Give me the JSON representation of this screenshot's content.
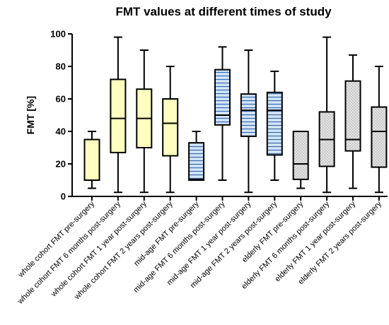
{
  "chart_data": {
    "type": "boxplot",
    "title": "FMT values at different times of study",
    "ylabel": "FMT [%]",
    "xlabel": "",
    "ylim": [
      0,
      100
    ],
    "yticks": [
      0,
      20,
      40,
      60,
      80,
      100
    ],
    "grid": false,
    "categories": [
      "whole cohort FMT pre-surgery",
      "whole cohort FMT 6 months post-surgery",
      "whole cohort FMT 1 year post-surgery",
      "whole cohort FMT 2 years post-surgery",
      "mid-age FMT pre-surgery",
      "mid-age FMT 6 months post-surgery",
      "mid-age FMT 1 year post-surgery",
      "mid-age FMT 2 years post-surgery",
      "elderly FMT pre-surgery",
      "elderly FMT 6 months post-surgery",
      "elderly FMT 1 year post-surgery",
      "elderly FMT 2 years post-surgery"
    ],
    "boxes": [
      {
        "min": 5,
        "q1": 10,
        "median": 10,
        "q3": 35,
        "max": 40,
        "fill": "#ffffc0",
        "pattern": "none"
      },
      {
        "min": 2.5,
        "q1": 27,
        "median": 48,
        "q3": 72,
        "max": 98,
        "fill": "#ffffc0",
        "pattern": "none"
      },
      {
        "min": 2.5,
        "q1": 30,
        "median": 48,
        "q3": 66,
        "max": 90,
        "fill": "#ffffc0",
        "pattern": "none"
      },
      {
        "min": 2.5,
        "q1": 25,
        "median": 45,
        "q3": 60,
        "max": 80,
        "fill": "#ffffc0",
        "pattern": "none"
      },
      {
        "min": 10,
        "q1": 10,
        "median": 10.5,
        "q3": 33,
        "max": 40,
        "fill": "#d6e6f7",
        "pattern": "horizontal-lines"
      },
      {
        "min": 10,
        "q1": 44,
        "median": 50,
        "q3": 78,
        "max": 92,
        "fill": "#d6e6f7",
        "pattern": "horizontal-lines"
      },
      {
        "min": 2.5,
        "q1": 37,
        "median": 53,
        "q3": 63,
        "max": 90,
        "fill": "#d6e6f7",
        "pattern": "horizontal-lines"
      },
      {
        "min": 10,
        "q1": 25.5,
        "median": 53,
        "q3": 64,
        "max": 77,
        "fill": "#d6e6f7",
        "pattern": "horizontal-lines"
      },
      {
        "min": 5,
        "q1": 10.5,
        "median": 20,
        "q3": 40,
        "max": 40,
        "fill": "#e4e4e4",
        "pattern": "dots"
      },
      {
        "min": 2.5,
        "q1": 18.5,
        "median": 35,
        "q3": 52,
        "max": 98,
        "fill": "#e4e4e4",
        "pattern": "dots"
      },
      {
        "min": 5,
        "q1": 28,
        "median": 35,
        "q3": 71,
        "max": 87,
        "fill": "#e4e4e4",
        "pattern": "dots"
      },
      {
        "min": 2.5,
        "q1": 18,
        "median": 40,
        "q3": 55,
        "max": 80,
        "fill": "#e4e4e4",
        "pattern": "dots"
      }
    ],
    "colors": {
      "whole_cohort": "#ffffc0",
      "mid_age": "#d6e6f7",
      "mid_age_lines": "#3a6fb5",
      "elderly": "#e4e4e4",
      "elderly_dots": "#8a8a8a",
      "stroke": "#000000"
    }
  }
}
